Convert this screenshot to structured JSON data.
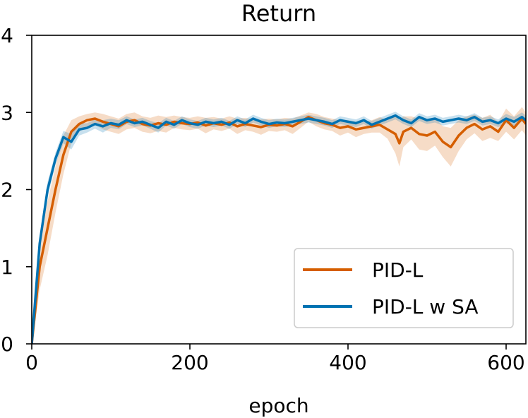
{
  "chart_data": {
    "type": "line",
    "title": "Return",
    "xlabel": "epoch",
    "ylabel": "",
    "xlim": [
      0,
      625
    ],
    "ylim": [
      0,
      4
    ],
    "xticks": [
      0,
      200,
      400,
      600
    ],
    "yticks": [
      0,
      1,
      2,
      3,
      4
    ],
    "xtick_labels": [
      "0",
      "200",
      "400",
      "600"
    ],
    "ytick_labels": [
      "0",
      "1",
      "2",
      "3",
      "4"
    ],
    "grid": false,
    "legend_position": "bottom-right",
    "series": [
      {
        "name": "PID-L",
        "color": "#d55e00",
        "x": [
          0,
          10,
          20,
          30,
          40,
          50,
          60,
          70,
          80,
          90,
          100,
          110,
          120,
          130,
          140,
          150,
          160,
          170,
          180,
          190,
          200,
          210,
          220,
          230,
          240,
          250,
          260,
          270,
          280,
          290,
          300,
          310,
          320,
          330,
          340,
          350,
          360,
          370,
          380,
          390,
          400,
          410,
          420,
          430,
          440,
          450,
          460,
          465,
          470,
          480,
          490,
          500,
          510,
          520,
          530,
          540,
          550,
          560,
          570,
          580,
          590,
          600,
          610,
          620,
          625
        ],
        "y": [
          0,
          1.0,
          1.5,
          2.0,
          2.45,
          2.75,
          2.85,
          2.9,
          2.92,
          2.88,
          2.85,
          2.82,
          2.88,
          2.9,
          2.85,
          2.83,
          2.86,
          2.84,
          2.88,
          2.86,
          2.85,
          2.87,
          2.83,
          2.86,
          2.84,
          2.87,
          2.82,
          2.85,
          2.83,
          2.81,
          2.84,
          2.83,
          2.85,
          2.82,
          2.88,
          2.94,
          2.9,
          2.86,
          2.84,
          2.8,
          2.82,
          2.78,
          2.8,
          2.82,
          2.84,
          2.78,
          2.72,
          2.6,
          2.75,
          2.8,
          2.72,
          2.7,
          2.75,
          2.62,
          2.55,
          2.7,
          2.8,
          2.85,
          2.78,
          2.82,
          2.75,
          2.9,
          2.8,
          2.92,
          2.85
        ],
        "band": [
          0.05,
          0.3,
          0.35,
          0.3,
          0.25,
          0.15,
          0.1,
          0.08,
          0.08,
          0.1,
          0.1,
          0.1,
          0.1,
          0.1,
          0.1,
          0.1,
          0.1,
          0.1,
          0.08,
          0.08,
          0.08,
          0.08,
          0.1,
          0.08,
          0.08,
          0.08,
          0.1,
          0.08,
          0.08,
          0.1,
          0.08,
          0.08,
          0.08,
          0.1,
          0.08,
          0.06,
          0.08,
          0.08,
          0.08,
          0.1,
          0.08,
          0.1,
          0.08,
          0.08,
          0.1,
          0.12,
          0.25,
          0.3,
          0.2,
          0.15,
          0.2,
          0.2,
          0.18,
          0.2,
          0.25,
          0.2,
          0.15,
          0.12,
          0.15,
          0.15,
          0.12,
          0.15,
          0.15,
          0.15,
          0.15
        ]
      },
      {
        "name": "PID-L w SA",
        "color": "#0072b2",
        "x": [
          0,
          10,
          20,
          30,
          40,
          50,
          60,
          70,
          80,
          90,
          100,
          110,
          120,
          130,
          140,
          150,
          160,
          170,
          180,
          190,
          200,
          210,
          220,
          230,
          240,
          250,
          260,
          270,
          280,
          290,
          300,
          310,
          320,
          330,
          340,
          350,
          360,
          370,
          380,
          390,
          400,
          410,
          420,
          430,
          440,
          450,
          460,
          470,
          480,
          490,
          500,
          510,
          520,
          530,
          540,
          550,
          560,
          570,
          580,
          590,
          600,
          610,
          620,
          625
        ],
        "y": [
          0,
          1.3,
          2.0,
          2.4,
          2.68,
          2.62,
          2.78,
          2.8,
          2.85,
          2.82,
          2.86,
          2.84,
          2.9,
          2.86,
          2.88,
          2.84,
          2.8,
          2.88,
          2.84,
          2.9,
          2.86,
          2.84,
          2.88,
          2.86,
          2.88,
          2.84,
          2.9,
          2.86,
          2.92,
          2.88,
          2.85,
          2.87,
          2.86,
          2.88,
          2.9,
          2.92,
          2.9,
          2.88,
          2.85,
          2.9,
          2.88,
          2.86,
          2.9,
          2.84,
          2.88,
          2.92,
          2.96,
          2.9,
          2.86,
          2.94,
          2.9,
          2.92,
          2.88,
          2.9,
          2.92,
          2.9,
          2.94,
          2.88,
          2.9,
          2.86,
          2.92,
          2.88,
          2.94,
          2.9
        ],
        "band": [
          0.05,
          0.1,
          0.1,
          0.08,
          0.08,
          0.1,
          0.08,
          0.06,
          0.06,
          0.08,
          0.06,
          0.06,
          0.05,
          0.05,
          0.05,
          0.05,
          0.06,
          0.05,
          0.05,
          0.05,
          0.05,
          0.05,
          0.05,
          0.05,
          0.05,
          0.05,
          0.05,
          0.05,
          0.05,
          0.05,
          0.05,
          0.05,
          0.05,
          0.05,
          0.05,
          0.05,
          0.05,
          0.05,
          0.05,
          0.05,
          0.05,
          0.05,
          0.05,
          0.05,
          0.05,
          0.05,
          0.05,
          0.05,
          0.05,
          0.05,
          0.05,
          0.05,
          0.05,
          0.05,
          0.05,
          0.05,
          0.05,
          0.05,
          0.05,
          0.05,
          0.06,
          0.06,
          0.06,
          0.06
        ]
      }
    ]
  }
}
